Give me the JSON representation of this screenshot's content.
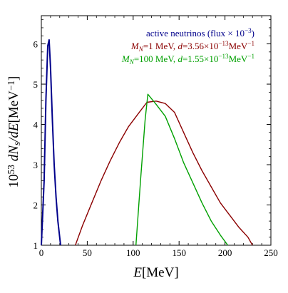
{
  "chart_data": {
    "type": "line",
    "xlabel": "E[MeV]",
    "ylabel": "10^53 dN_s/dE[MeV^-1]",
    "xlim": [
      0,
      250
    ],
    "ylim": [
      1,
      6.7
    ],
    "x_ticks": [
      0,
      50,
      100,
      150,
      200,
      250
    ],
    "y_ticks": [
      1,
      2,
      3,
      4,
      5,
      6
    ],
    "grid": false,
    "legend_placement": "top-right",
    "series": [
      {
        "name": "active neutrinos (flux × 10^-3)",
        "color": "#00008b",
        "x": [
          0,
          3,
          5,
          7,
          8.5,
          10,
          12,
          14,
          16,
          18,
          21
        ],
        "y": [
          1,
          2.6,
          4.6,
          5.95,
          6.1,
          5.4,
          4.1,
          3.0,
          2.2,
          1.6,
          1
        ]
      },
      {
        "name": "M_N=1 MeV, d=3.56×10^-13 MeV^-1",
        "color": "#8b0000",
        "x": [
          37,
          45,
          55,
          65,
          75,
          85,
          95,
          105,
          115,
          125,
          135,
          145,
          155,
          165,
          175,
          185,
          195,
          205,
          215,
          225,
          230
        ],
        "y": [
          1,
          1.5,
          2.05,
          2.6,
          3.1,
          3.55,
          3.95,
          4.25,
          4.55,
          4.58,
          4.52,
          4.3,
          3.8,
          3.3,
          2.85,
          2.45,
          2.05,
          1.75,
          1.45,
          1.2,
          1
        ]
      },
      {
        "name": "M_N=100 MeV, d=1.55×10^-13 MeV^-1",
        "color": "#00a000",
        "x": [
          103,
          108,
          113,
          116,
          125,
          135,
          145,
          155,
          165,
          175,
          185,
          195,
          203
        ],
        "y": [
          1,
          2.6,
          4.1,
          4.75,
          4.5,
          4.2,
          3.65,
          3.05,
          2.55,
          2.05,
          1.6,
          1.25,
          1
        ]
      }
    ]
  },
  "legend": [
    {
      "color": "#00008b",
      "parts": [
        {
          "t": "active neutrinos (flux × 10",
          "s": "n"
        },
        {
          "t": "−3",
          "s": "sup"
        },
        {
          "t": ")",
          "s": "n"
        }
      ]
    },
    {
      "color": "#8b0000",
      "parts": [
        {
          "t": "M",
          "s": "i"
        },
        {
          "t": "N",
          "s": "isub"
        },
        {
          "t": "=1 MeV, ",
          "s": "n"
        },
        {
          "t": "d",
          "s": "i"
        },
        {
          "t": "=3.56×10",
          "s": "n"
        },
        {
          "t": "−13",
          "s": "sup"
        },
        {
          "t": "MeV",
          "s": "n"
        },
        {
          "t": "−1",
          "s": "sup"
        }
      ]
    },
    {
      "color": "#00a000",
      "parts": [
        {
          "t": "M",
          "s": "i"
        },
        {
          "t": "N",
          "s": "isub"
        },
        {
          "t": "=100 MeV, ",
          "s": "n"
        },
        {
          "t": "d",
          "s": "i"
        },
        {
          "t": "=1.55×10",
          "s": "n"
        },
        {
          "t": "−13",
          "s": "sup"
        },
        {
          "t": "MeV",
          "s": "n"
        },
        {
          "t": "−1",
          "s": "sup"
        }
      ]
    }
  ],
  "xlabel_parts": [
    {
      "t": "E",
      "s": "i"
    },
    {
      "t": "[MeV]",
      "s": "n"
    }
  ],
  "ylabel_parts": [
    {
      "t": "10",
      "s": "n"
    },
    {
      "t": "53",
      "s": "sup"
    },
    {
      "t": " dN",
      "s": "i"
    },
    {
      "t": "s",
      "s": "isub"
    },
    {
      "t": "/dE",
      "s": "i"
    },
    {
      "t": "[MeV",
      "s": "n"
    },
    {
      "t": "−1",
      "s": "sup"
    },
    {
      "t": "]",
      "s": "n"
    }
  ]
}
